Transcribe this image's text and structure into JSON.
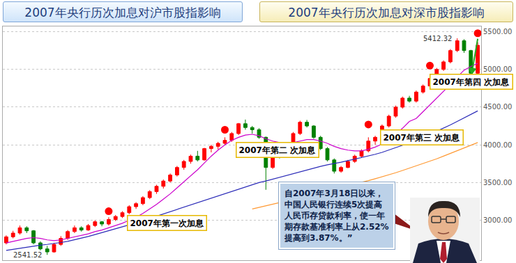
{
  "chart_data": {
    "type": "candlestick",
    "tabs": [
      "2007年央行历次加息对沪市股指影响",
      "2007年央行历次加息对深市股指影响"
    ],
    "categories": [
      null,
      null,
      null,
      null,
      null,
      null,
      null,
      null,
      null,
      null,
      null,
      null,
      null,
      null,
      null,
      null,
      null,
      null,
      null,
      null,
      null,
      null,
      null,
      null,
      null,
      null,
      null,
      null,
      null,
      null,
      null,
      null,
      null,
      null,
      null,
      null,
      null,
      null,
      null,
      null,
      null,
      null,
      null,
      null,
      null,
      null,
      null,
      null,
      null,
      null,
      null,
      null,
      null,
      null,
      null,
      null,
      null,
      null,
      null,
      null,
      null,
      null,
      null,
      null,
      null,
      null,
      null,
      null,
      null,
      null
    ],
    "ohlc": {
      "open": [
        2700,
        2780,
        2830,
        2900,
        2860,
        2700,
        2620,
        2580,
        2680,
        2760,
        2850,
        2900,
        2870,
        2930,
        2980,
        2950,
        3010,
        3050,
        3100,
        3180,
        3220,
        3300,
        3380,
        3450,
        3520,
        3600,
        3700,
        3780,
        3850,
        3800,
        3950,
        3980,
        4020,
        4060,
        4150,
        4280,
        4230,
        4200,
        4100,
        3700,
        3950,
        3850,
        4000,
        4150,
        4300,
        4250,
        4100,
        3950,
        3800,
        3650,
        3700,
        3780,
        3850,
        3920,
        4050,
        4100,
        4250,
        4380,
        4500,
        4620,
        4580,
        4700,
        4780,
        4880,
        5000,
        5100,
        5250,
        5380,
        5250,
        4950
      ],
      "high": [
        2800,
        2860,
        2930,
        2920,
        2870,
        2720,
        2660,
        2700,
        2790,
        2870,
        2930,
        2920,
        2950,
        3000,
        2990,
        3040,
        3070,
        3120,
        3200,
        3240,
        3320,
        3400,
        3470,
        3540,
        3620,
        3720,
        3800,
        3870,
        3920,
        3960,
        4000,
        4040,
        4100,
        4170,
        4290,
        4335,
        4250,
        4220,
        4110,
        3960,
        3980,
        4020,
        4170,
        4320,
        4330,
        4260,
        4120,
        3970,
        3820,
        3720,
        3800,
        3870,
        3940,
        4100,
        4120,
        4270,
        4400,
        4520,
        4640,
        4650,
        4720,
        4800,
        4920,
        5020,
        5120,
        5270,
        5412.32,
        5400,
        5260,
        5360
      ],
      "low": [
        2680,
        2760,
        2810,
        2830,
        2680,
        2600,
        2541.52,
        2570,
        2660,
        2740,
        2830,
        2850,
        2860,
        2910,
        2920,
        2930,
        2990,
        3030,
        3080,
        3150,
        3200,
        3280,
        3350,
        3420,
        3500,
        3580,
        3670,
        3750,
        3780,
        3790,
        3900,
        3940,
        4000,
        4040,
        4130,
        4200,
        4150,
        4080,
        3404,
        3680,
        3820,
        3840,
        3990,
        4130,
        4230,
        4080,
        3930,
        3780,
        3620,
        3630,
        3690,
        3760,
        3830,
        3900,
        4000,
        4080,
        4230,
        4360,
        4480,
        4560,
        4560,
        4680,
        4760,
        4860,
        4980,
        5080,
        5230,
        5220,
        4920,
        4940
      ],
      "close": [
        2780,
        2830,
        2900,
        2860,
        2700,
        2620,
        2580,
        2680,
        2760,
        2850,
        2900,
        2870,
        2930,
        2980,
        2950,
        3010,
        3050,
        3100,
        3180,
        3220,
        3300,
        3380,
        3450,
        3520,
        3600,
        3700,
        3780,
        3850,
        3800,
        3950,
        3980,
        4020,
        4060,
        4150,
        4280,
        4230,
        4200,
        4100,
        3700,
        3950,
        3850,
        4000,
        4150,
        4300,
        4250,
        4100,
        3950,
        3800,
        3650,
        3700,
        3780,
        3850,
        3920,
        4050,
        4100,
        4250,
        4380,
        4500,
        4620,
        4580,
        4700,
        4780,
        4880,
        5000,
        5100,
        5250,
        5380,
        5250,
        4950,
        5320
      ],
      "rising": {
        "color": "#ff0000"
      },
      "falling": {
        "color": "#008000"
      }
    },
    "series": [
      {
        "type": "line",
        "color": "#2b2bb8",
        "values": [
          2600,
          2615,
          2630,
          2645,
          2660,
          2670,
          2680,
          2690,
          2705,
          2720,
          2740,
          2760,
          2785,
          2810,
          2835,
          2860,
          2885,
          2910,
          2935,
          2965,
          2995,
          3025,
          3055,
          3085,
          3115,
          3145,
          3175,
          3205,
          3235,
          3265,
          3295,
          3325,
          3355,
          3385,
          3415,
          3445,
          3475,
          3500,
          3520,
          3545,
          3570,
          3595,
          3620,
          3645,
          3670,
          3695,
          3715,
          3735,
          3750,
          3770,
          3790,
          3810,
          3830,
          3850,
          3875,
          3900,
          3930,
          3960,
          3995,
          4030,
          4065,
          4100,
          4140,
          4180,
          4220,
          4265,
          4310,
          4355,
          4400,
          4450
        ]
      },
      {
        "type": "line",
        "color": "#ff9933",
        "values": [
          null,
          null,
          null,
          null,
          null,
          null,
          null,
          null,
          null,
          null,
          null,
          null,
          null,
          null,
          null,
          null,
          null,
          null,
          null,
          null,
          null,
          null,
          null,
          null,
          null,
          null,
          null,
          null,
          null,
          null,
          null,
          null,
          null,
          null,
          null,
          null,
          3150,
          3170,
          3190,
          3210,
          3230,
          3255,
          3280,
          3305,
          3330,
          3355,
          3380,
          3400,
          3420,
          3440,
          3460,
          3480,
          3500,
          3525,
          3550,
          3575,
          3600,
          3630,
          3660,
          3690,
          3720,
          3750,
          3780,
          3815,
          3850,
          3885,
          3920,
          3955,
          3990,
          4030
        ]
      },
      {
        "type": "line",
        "color": "#cc00cc",
        "values": [
          2700,
          2720,
          2740,
          2760,
          2770,
          2760,
          2740,
          2730,
          2740,
          2760,
          2780,
          2800,
          2820,
          2850,
          2870,
          2900,
          2930,
          2960,
          3000,
          3040,
          3090,
          3150,
          3210,
          3280,
          3350,
          3430,
          3510,
          3590,
          3670,
          3760,
          3850,
          3930,
          4000,
          4060,
          4100,
          4130,
          4140,
          4120,
          4080,
          4050,
          4030,
          4020,
          4030,
          4050,
          4070,
          4070,
          4050,
          4020,
          3980,
          3950,
          3930,
          3920,
          3920,
          3940,
          3970,
          4010,
          4070,
          4140,
          4220,
          4310,
          4350,
          4440,
          4530,
          4620,
          4710,
          4800,
          4900,
          4990,
          5040,
          5080
        ]
      },
      {
        "type": "scatter",
        "marker": "circle",
        "color": "#ff0000",
        "values": [
          null,
          null,
          null,
          null,
          null,
          null,
          null,
          null,
          null,
          null,
          null,
          null,
          null,
          null,
          null,
          3120,
          null,
          null,
          null,
          null,
          null,
          null,
          null,
          null,
          null,
          null,
          null,
          null,
          null,
          null,
          null,
          null,
          4200,
          null,
          null,
          null,
          null,
          null,
          null,
          null,
          null,
          null,
          null,
          null,
          null,
          null,
          null,
          null,
          null,
          null,
          null,
          null,
          null,
          4270,
          null,
          null,
          null,
          null,
          null,
          null,
          null,
          null,
          5050,
          null,
          null,
          null,
          null,
          null,
          null,
          5480
        ]
      }
    ],
    "ylim": [
      2470,
      5570
    ],
    "yticks": [
      {
        "value": 3000,
        "label": "3000.00"
      },
      {
        "value": 3500,
        "label": "3500.00"
      },
      {
        "value": 4000,
        "label": "4000.00"
      },
      {
        "value": 4500,
        "label": "4500.00"
      },
      {
        "value": 5000,
        "label": "5000.00"
      },
      {
        "value": 5500,
        "label": "5500.00"
      }
    ],
    "grid": true,
    "tick_labels": "y",
    "annotations": [
      "2007年第一次加息",
      "2007年第二 次加息",
      "2007年第三 次加息",
      "2007年第四 次加息"
    ],
    "high_label": {
      "index": 66,
      "value": 5412.32
    },
    "low_label": {
      "index": 6,
      "value": 2541.52
    },
    "note": "自2007年3月18日以来，中国人民银行连续5次提高人民币存贷款利率，使一年期存款基准利率上从2.52%提高到3.87%。”"
  }
}
